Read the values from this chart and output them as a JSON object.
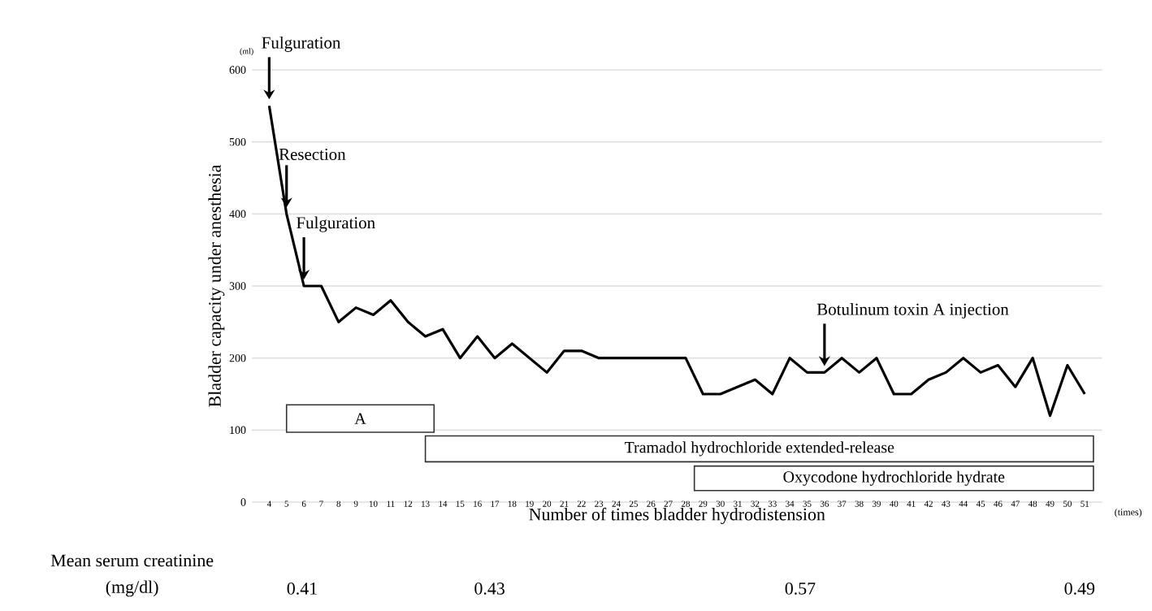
{
  "chart_data": {
    "type": "line",
    "ylabel": "Bladder capacity under anesthesia",
    "xlabel": "Number of times bladder hydrodistension",
    "x": [
      4,
      5,
      6,
      7,
      8,
      9,
      10,
      11,
      12,
      13,
      14,
      15,
      16,
      17,
      18,
      19,
      20,
      21,
      22,
      23,
      24,
      25,
      26,
      27,
      28,
      29,
      30,
      31,
      32,
      33,
      34,
      35,
      36,
      37,
      38,
      39,
      40,
      41,
      42,
      43,
      44,
      45,
      46,
      47,
      48,
      49,
      50,
      51
    ],
    "series": [
      {
        "color": "#000000",
        "values": [
          550,
          400,
          300,
          300,
          250,
          270,
          260,
          280,
          250,
          230,
          240,
          200,
          230,
          200,
          220,
          200,
          180,
          210,
          210,
          200,
          200,
          200,
          200,
          200,
          200,
          150,
          150,
          160,
          170,
          150,
          200,
          180,
          180,
          200,
          180,
          200,
          150,
          150,
          170,
          180,
          200,
          180,
          190,
          160,
          200,
          120,
          190,
          150
        ]
      }
    ],
    "xlim": [
      3,
      52
    ],
    "xticks": [
      4,
      5,
      6,
      7,
      8,
      9,
      10,
      11,
      12,
      13,
      14,
      15,
      16,
      17,
      18,
      19,
      20,
      21,
      22,
      23,
      24,
      25,
      26,
      27,
      28,
      29,
      30,
      31,
      32,
      33,
      34,
      35,
      36,
      37,
      38,
      39,
      40,
      41,
      42,
      43,
      44,
      45,
      46,
      47,
      48,
      49,
      50,
      51
    ],
    "ylim": [
      0,
      600
    ],
    "yticks": [
      0,
      100,
      200,
      300,
      400,
      500,
      600
    ],
    "grid": "y",
    "marker": "none",
    "line_style": "solid",
    "bands": [
      {
        "axis": "x",
        "from": 5,
        "to": 13.5,
        "label": "A"
      },
      {
        "axis": "x",
        "from": 13,
        "to": 51.5,
        "label": "Tramadol hydrochloride extended-release"
      },
      {
        "axis": "x",
        "from": 28.5,
        "to": 51.5,
        "label": "Oxycodone hydrochloride hydrate"
      }
    ],
    "annotations": [
      "(ml)",
      "(times)",
      {
        "text": "Fulguration",
        "x": 4,
        "y": 550
      },
      {
        "text": "Resection",
        "x": 5,
        "y": 400
      },
      {
        "text": "Fulguration",
        "x": 6,
        "y": 300
      },
      {
        "text": "Botulinum toxin A injection",
        "x": 36,
        "y": 180
      },
      "Mean serum creatinine",
      "(mg/dl)",
      "0.41",
      "0.43",
      "0.57",
      "0.49"
    ]
  }
}
